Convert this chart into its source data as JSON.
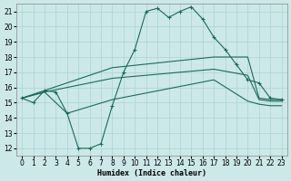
{
  "xlabel": "Humidex (Indice chaleur)",
  "bg_color": "#cce8e8",
  "grid_color": "#aad4d4",
  "line_color": "#1a6b5a",
  "xlim": [
    -0.5,
    23.5
  ],
  "ylim": [
    11.5,
    21.5
  ],
  "xticks": [
    0,
    1,
    2,
    3,
    4,
    5,
    6,
    7,
    8,
    9,
    10,
    11,
    12,
    13,
    14,
    15,
    16,
    17,
    18,
    19,
    20,
    21,
    22,
    23
  ],
  "yticks": [
    12,
    13,
    14,
    15,
    16,
    17,
    18,
    19,
    20,
    21
  ],
  "curve1_x": [
    0,
    1,
    2,
    3,
    4,
    5,
    6,
    7,
    8,
    9,
    10,
    11,
    12,
    13,
    14,
    15,
    16,
    17,
    18,
    19,
    20,
    21,
    22,
    23
  ],
  "curve1_y": [
    15.3,
    15.0,
    15.8,
    15.7,
    14.3,
    12.0,
    12.0,
    12.3,
    14.8,
    17.0,
    18.5,
    21.0,
    21.2,
    20.6,
    21.0,
    21.3,
    20.5,
    19.3,
    18.5,
    17.5,
    16.5,
    16.3,
    15.3,
    15.2
  ],
  "curve2_x": [
    0,
    2,
    8,
    17,
    20,
    21,
    22,
    23
  ],
  "curve2_y": [
    15.3,
    15.8,
    17.3,
    18.0,
    18.0,
    15.3,
    15.2,
    15.2
  ],
  "curve3_x": [
    0,
    2,
    8,
    17,
    20,
    21,
    22,
    23
  ],
  "curve3_y": [
    15.3,
    15.7,
    16.6,
    17.2,
    16.8,
    15.2,
    15.1,
    15.1
  ],
  "curve4_x": [
    0,
    2,
    4,
    8,
    17,
    20,
    21,
    22,
    23
  ],
  "curve4_y": [
    15.3,
    15.7,
    14.3,
    15.2,
    16.5,
    15.1,
    14.9,
    14.8,
    14.8
  ]
}
